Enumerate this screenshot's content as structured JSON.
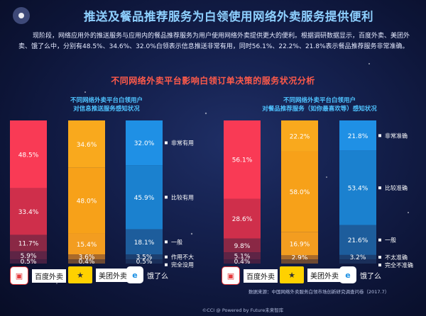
{
  "title": "推送及餐品推荐服务为白领使用网络外卖服务提供便利",
  "intro": "现阶段，网络应用外的推送服务与应用内的餐品推荐服务为用户使用网络外卖提供更大的便利。根据调研数据显示，百度外卖、美团外卖、饿了么中，分别有48.5%、34.6%、32.0%白领表示信息推送非常有用，同时56.1%、22.2%、21.8%表示餐品推荐服务非常准确。",
  "section_title": "不同网络外卖平台影响白领订单决策的服务状况分析",
  "brands": [
    "百度外卖",
    "美团外卖",
    "饿了么"
  ],
  "source": "数据来源：中国网络外卖服务白领市场创新研究调查问卷（2017.7）",
  "footer": "©CCI @ Powered by Future未来智库",
  "colors": {
    "seg_top": [
      "#f93a55",
      "#f9a91d",
      "#1f90e5"
    ],
    "seg_2": [
      "#cf2f4b",
      "#f7a119",
      "#1b81cf"
    ],
    "seg_3": [
      "#8a2845",
      "#f39d20",
      "#1d5d9c"
    ],
    "seg_4": [
      "#5e2445",
      "#aa6a2a",
      "#1c3f70"
    ],
    "seg_5": [
      "#462042",
      "#6e4a32",
      "#1a2f5a"
    ]
  },
  "chart_data": [
    {
      "type": "bar",
      "stacked": true,
      "subtitle_lines": [
        "不同网络外卖平台白领用户",
        "对信息推送服务感知状况"
      ],
      "categories": [
        "百度外卖",
        "美团外卖",
        "饿了么"
      ],
      "segment_labels": [
        "非常有用",
        "比较有用",
        "一般",
        "作用不大",
        "完全没用"
      ],
      "series": [
        {
          "name": "非常有用",
          "values": [
            48.5,
            34.6,
            32.0
          ]
        },
        {
          "name": "比较有用",
          "values": [
            33.4,
            48.0,
            45.9
          ]
        },
        {
          "name": "一般",
          "values": [
            11.7,
            15.4,
            18.1
          ]
        },
        {
          "name": "作用不大",
          "values": [
            5.9,
            3.6,
            3.5
          ]
        },
        {
          "name": "完全没用",
          "values": [
            0.5,
            0.4,
            0.5
          ]
        }
      ],
      "value_labels": [
        [
          "48.5%",
          "34.6%",
          "32.0%"
        ],
        [
          "33.4%",
          "48.0%",
          "45.9%"
        ],
        [
          "11.7%",
          "15.4%",
          "18.1%"
        ],
        [
          "5.9%",
          "3.6%",
          "3.5%"
        ],
        [
          "0.5%",
          "0.4%",
          "0.5%"
        ]
      ],
      "ylim": [
        0,
        100
      ]
    },
    {
      "type": "bar",
      "stacked": true,
      "subtitle_lines": [
        "不同网络外卖平台白领用户",
        "对餐品推荐服务（如你最喜欢等）感知状况"
      ],
      "categories": [
        "百度外卖",
        "美团外卖",
        "饿了么"
      ],
      "segment_labels": [
        "非常准确",
        "比较准确",
        "一般",
        "不太准确",
        "完全不准确"
      ],
      "series": [
        {
          "name": "非常准确",
          "values": [
            56.1,
            22.2,
            21.8
          ]
        },
        {
          "name": "比较准确",
          "values": [
            28.6,
            58.0,
            53.4
          ]
        },
        {
          "name": "一般",
          "values": [
            9.8,
            16.9,
            21.6
          ]
        },
        {
          "name": "不太准确",
          "values": [
            5.1,
            2.9,
            3.2
          ]
        },
        {
          "name": "完全不准确",
          "values": [
            0.4,
            0.0,
            0.0
          ]
        }
      ],
      "value_labels": [
        [
          "56.1%",
          "22.2%",
          "21.8%"
        ],
        [
          "28.6%",
          "58.0%",
          "53.4%"
        ],
        [
          "9.8%",
          "16.9%",
          "21.6%"
        ],
        [
          "5.1%",
          "2.9%",
          "3.2%"
        ],
        [
          "0.4%",
          "",
          ""
        ]
      ],
      "ylim": [
        0,
        100
      ]
    }
  ]
}
